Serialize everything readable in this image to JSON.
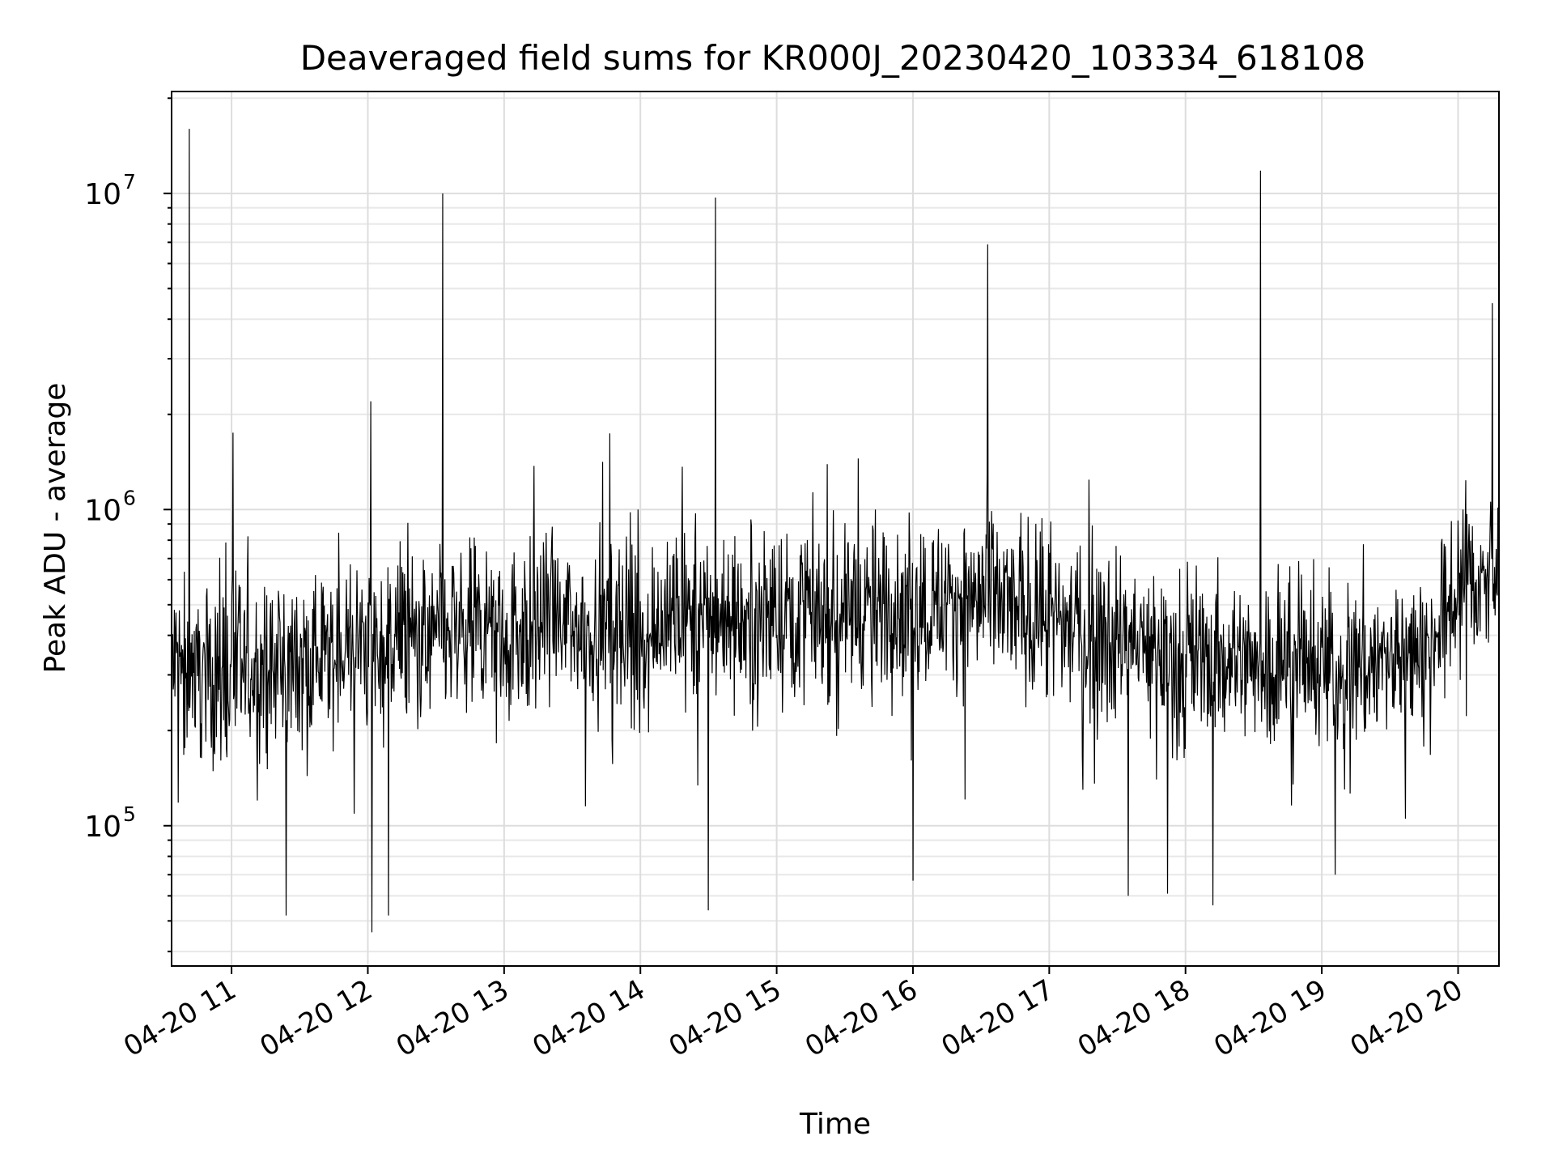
{
  "chart_data": {
    "type": "line",
    "title": "Deaveraged field sums for KR000J_20230420_103334_618108",
    "xlabel": "Time",
    "ylabel": "Peak ADU - average",
    "yscale": "log",
    "ylim": [
      36000,
      21000000
    ],
    "xlim_hours": [
      10.56,
      20.3
    ],
    "grid": true,
    "line_color": "#000000",
    "x_ticks": [
      {
        "hour": 11,
        "label": "04-20 11"
      },
      {
        "hour": 12,
        "label": "04-20 12"
      },
      {
        "hour": 13,
        "label": "04-20 13"
      },
      {
        "hour": 14,
        "label": "04-20 14"
      },
      {
        "hour": 15,
        "label": "04-20 15"
      },
      {
        "hour": 16,
        "label": "04-20 16"
      },
      {
        "hour": 17,
        "label": "04-20 17"
      },
      {
        "hour": 18,
        "label": "04-20 18"
      },
      {
        "hour": 19,
        "label": "04-20 19"
      },
      {
        "hour": 20,
        "label": "04-20 20"
      }
    ],
    "y_ticks": [
      {
        "value": 100000,
        "base": "10",
        "exp": "5"
      },
      {
        "value": 1000000,
        "base": "10",
        "exp": "6"
      },
      {
        "value": 10000000,
        "base": "10",
        "exp": "7"
      }
    ],
    "baseline_trend": [
      {
        "hour": 10.56,
        "value": 320000
      },
      {
        "hour": 11.0,
        "value": 300000
      },
      {
        "hour": 12.0,
        "value": 370000
      },
      {
        "hour": 13.0,
        "value": 420000
      },
      {
        "hour": 14.0,
        "value": 430000
      },
      {
        "hour": 15.0,
        "value": 470000
      },
      {
        "hour": 16.0,
        "value": 500000
      },
      {
        "hour": 16.5,
        "value": 520000
      },
      {
        "hour": 17.0,
        "value": 450000
      },
      {
        "hour": 18.0,
        "value": 340000
      },
      {
        "hour": 19.0,
        "value": 320000
      },
      {
        "hour": 19.8,
        "value": 340000
      },
      {
        "hour": 20.0,
        "value": 600000
      },
      {
        "hour": 20.3,
        "value": 600000
      }
    ],
    "noise_band_decades": 0.17,
    "sample_count": 2400,
    "spikes": [
      {
        "hour": 10.69,
        "value": 16000000
      },
      {
        "hour": 11.01,
        "value": 1750000
      },
      {
        "hour": 12.02,
        "value": 2200000
      },
      {
        "hour": 12.55,
        "value": 10000000
      },
      {
        "hour": 14.55,
        "value": 9700000
      },
      {
        "hour": 15.6,
        "value": 1450000
      },
      {
        "hour": 16.55,
        "value": 6900000
      },
      {
        "hour": 18.55,
        "value": 11800000
      },
      {
        "hour": 20.25,
        "value": 4500000
      }
    ],
    "dips": [
      {
        "hour": 11.4,
        "value": 52000
      },
      {
        "hour": 12.03,
        "value": 46000
      },
      {
        "hour": 12.15,
        "value": 52000
      },
      {
        "hour": 14.5,
        "value": 54000
      },
      {
        "hour": 16.0,
        "value": 67000
      },
      {
        "hour": 17.58,
        "value": 60000
      },
      {
        "hour": 17.87,
        "value": 61000
      },
      {
        "hour": 18.2,
        "value": 56000
      },
      {
        "hour": 19.1,
        "value": 70000
      }
    ]
  }
}
